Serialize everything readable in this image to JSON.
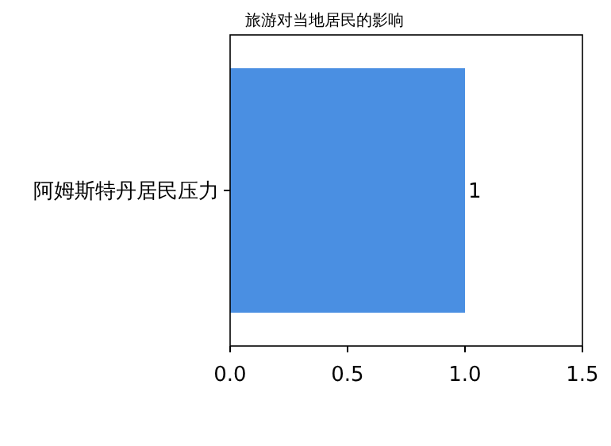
{
  "chart_data": {
    "type": "bar",
    "orientation": "horizontal",
    "title": "旅游对当地居民的影响",
    "categories": [
      "阿姆斯特丹居民压力"
    ],
    "values": [
      1
    ],
    "color": "#4a8fe2",
    "xlim": [
      0,
      1.5
    ],
    "xticks": [
      {
        "value": 0,
        "label": "0.0"
      },
      0.5,
      {
        "value": 1,
        "label": "1.0"
      },
      1.5
    ],
    "data_labels": true
  }
}
